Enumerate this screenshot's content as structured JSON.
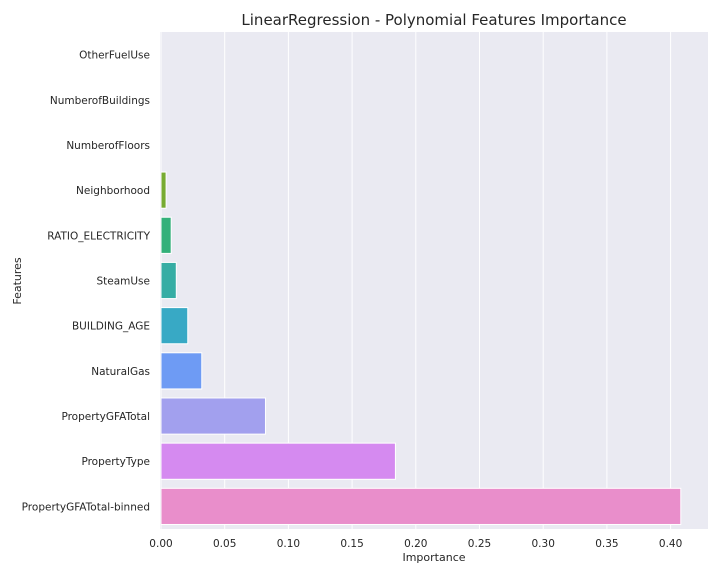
{
  "chart_data": {
    "type": "bar",
    "orientation": "horizontal",
    "title": "LinearRegression - Polynomial Features Importance",
    "xlabel": "Importance",
    "ylabel": "Features",
    "xlim": [
      0,
      0.43
    ],
    "xticks": [
      "0.00",
      "0.05",
      "0.10",
      "0.15",
      "0.20",
      "0.25",
      "0.30",
      "0.35",
      "0.40"
    ],
    "grid": true,
    "categories": [
      "OtherFuelUse",
      "NumberofBuildings",
      "NumberofFloors",
      "Neighborhood",
      "RATIO_ELECTRICITY",
      "SteamUse",
      "BUILDING_AGE",
      "NaturalGas",
      "PropertyGFATotal",
      "PropertyType",
      "PropertyGFATotal-binned"
    ],
    "values": [
      0.0,
      0.0,
      0.0,
      0.004,
      0.008,
      0.012,
      0.021,
      0.032,
      0.082,
      0.184,
      0.408
    ],
    "colors": [
      "#f77189",
      "#dc8932",
      "#ae9d31",
      "#77ab31",
      "#33b07a",
      "#36ada4",
      "#38a9c5",
      "#6e9bf4",
      "#a2a0ee",
      "#d58af0",
      "#e98ecb"
    ]
  }
}
